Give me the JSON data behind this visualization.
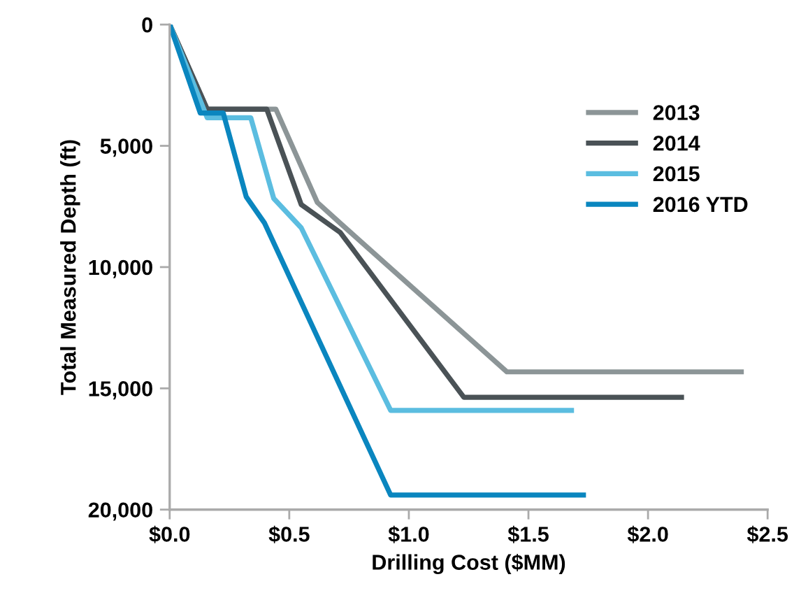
{
  "chart_data": {
    "type": "line",
    "xlabel": "Drilling Cost ($MM)",
    "ylabel": "Total Measured Depth (ft)",
    "xlim": [
      0,
      2.5
    ],
    "ylim": [
      20000,
      0
    ],
    "xticks": [
      {
        "value": 0,
        "label": "$0.0"
      },
      {
        "value": 0.5,
        "label": "$0.5"
      },
      {
        "value": 1.0,
        "label": "$1.0"
      },
      {
        "value": 1.5,
        "label": "$1.5"
      },
      {
        "value": 2.0,
        "label": "$2.0"
      },
      {
        "value": 2.5,
        "label": "$2.5"
      }
    ],
    "yticks": [
      {
        "value": 0,
        "label": "0"
      },
      {
        "value": 5000,
        "label": "5,000"
      },
      {
        "value": 10000,
        "label": "10,000"
      },
      {
        "value": 15000,
        "label": "15,000"
      },
      {
        "value": 20000,
        "label": "20,000"
      }
    ],
    "grid": false,
    "legend": "right",
    "marker": "none",
    "line_style": "solid",
    "series": [
      {
        "name": "2013",
        "color": "#8c9597",
        "x": [
          0,
          0.157,
          0.444,
          0.617,
          0.72,
          1.41,
          2.39
        ],
        "values": [
          0,
          3490,
          3490,
          7330,
          8250,
          14320,
          14320
        ]
      },
      {
        "name": "2014",
        "color": "#4a5256",
        "x": [
          0,
          0.157,
          0.406,
          0.55,
          0.713,
          1.23,
          2.14
        ],
        "values": [
          0,
          3490,
          3490,
          7420,
          8570,
          15370,
          15370
        ]
      },
      {
        "name": "2015",
        "color": "#5bbde0",
        "x": [
          0,
          0.157,
          0.339,
          0.435,
          0.55,
          0.924,
          1.68
        ],
        "values": [
          0,
          3840,
          3840,
          7170,
          8380,
          15910,
          15910
        ]
      },
      {
        "name": "2016 YTD",
        "color": "#0a86bf",
        "x": [
          0,
          0.128,
          0.224,
          0.32,
          0.397,
          0.924,
          1.73
        ],
        "values": [
          0,
          3650,
          3650,
          7100,
          8190,
          19400,
          19400
        ]
      }
    ]
  }
}
